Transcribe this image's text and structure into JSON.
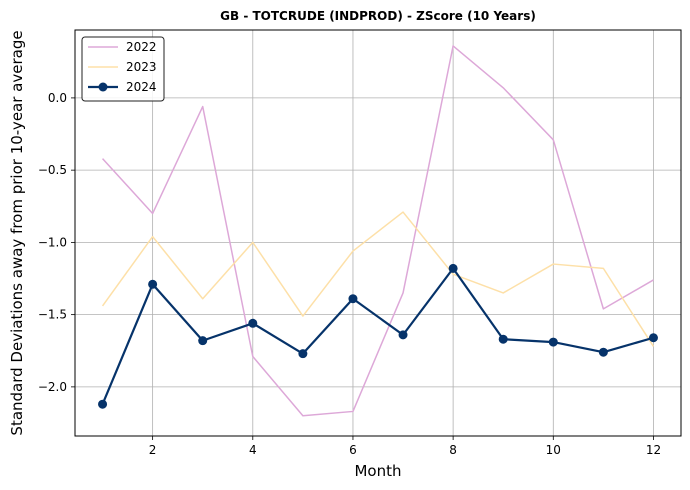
{
  "chart_data": {
    "type": "line",
    "title": "GB - TOTCRUDE (INDPROD) - ZScore (10 Years)",
    "xlabel": "Month",
    "ylabel": "Standard Deviations away from prior 10-year average",
    "xlim": [
      0.45,
      12.55
    ],
    "ylim": [
      -2.34,
      0.47
    ],
    "xticks": [
      2,
      4,
      6,
      8,
      10,
      12
    ],
    "yticks": [
      -2.0,
      -1.5,
      -1.0,
      -0.5,
      0.0
    ],
    "ytick_labels": [
      "−2.0",
      "−1.5",
      "−1.0",
      "−0.5",
      "0.0"
    ],
    "grid": true,
    "legend_position": "top-left",
    "x": [
      1,
      2,
      3,
      4,
      5,
      6,
      7,
      8,
      9,
      10,
      11,
      12
    ],
    "series": [
      {
        "name": "2022",
        "color": "#dda8d8",
        "marker": false,
        "values": [
          -0.42,
          -0.8,
          -0.06,
          -1.79,
          -2.2,
          -2.17,
          -1.35,
          0.36,
          0.07,
          -0.29,
          -1.46,
          -1.26
        ]
      },
      {
        "name": "2023",
        "color": "#fde0a8",
        "marker": false,
        "values": [
          -1.44,
          -0.96,
          -1.39,
          -1.0,
          -1.51,
          -1.06,
          -0.79,
          -1.22,
          -1.35,
          -1.15,
          -1.18,
          -1.72
        ]
      },
      {
        "name": "2024",
        "color": "#06336a",
        "marker": true,
        "values": [
          -2.12,
          -1.29,
          -1.68,
          -1.56,
          -1.77,
          -1.39,
          -1.64,
          -1.18,
          -1.67,
          -1.69,
          -1.76,
          -1.66
        ]
      }
    ]
  }
}
